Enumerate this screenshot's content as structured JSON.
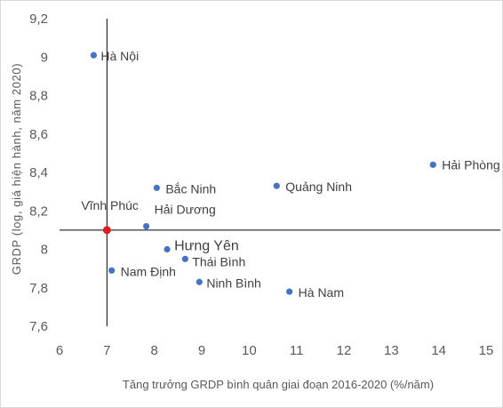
{
  "chart_data": {
    "type": "scatter",
    "title": "",
    "xlabel": "Tăng trưởng GRDP bình quân giai đoạn 2016-2020 (%/năm)",
    "ylabel": "GRDP (log, giá hiện hành, năm 2020)",
    "xlim": [
      6,
      15
    ],
    "ylim": [
      7.6,
      9.2
    ],
    "x_ticks": [
      "6",
      "7",
      "8",
      "9",
      "10",
      "11",
      "12",
      "13",
      "14",
      "15"
    ],
    "y_ticks": [
      "7,6",
      "7,8",
      "8",
      "8,2",
      "8,4",
      "8,6",
      "8,8",
      "9",
      "9,2"
    ],
    "grid": false,
    "reference_lines": {
      "x": 7.0,
      "y": 8.1
    },
    "colors": {
      "point": "#4472c4",
      "highlight": "#e31a1c",
      "reference_line": "#000000"
    },
    "points": [
      {
        "label": "Hà Nội",
        "x": 6.72,
        "y": 9.01
      },
      {
        "label": "Hải Phòng",
        "x": 13.88,
        "y": 8.44
      },
      {
        "label": "Quảng Ninh",
        "x": 10.58,
        "y": 8.33
      },
      {
        "label": "Bắc Ninh",
        "x": 8.05,
        "y": 8.32
      },
      {
        "label": "Hải Dương",
        "x": 7.83,
        "y": 8.12
      },
      {
        "label": "Vĩnh Phúc",
        "x": 7.0,
        "y": 8.1,
        "highlight": true
      },
      {
        "label": "Hưng Yên",
        "x": 8.27,
        "y": 8.0
      },
      {
        "label": "Thái Bình",
        "x": 8.65,
        "y": 7.95
      },
      {
        "label": "Nam Định",
        "x": 7.1,
        "y": 7.89
      },
      {
        "label": "Ninh Bình",
        "x": 8.95,
        "y": 7.83
      },
      {
        "label": "Hà Nam",
        "x": 10.85,
        "y": 7.78
      }
    ]
  }
}
